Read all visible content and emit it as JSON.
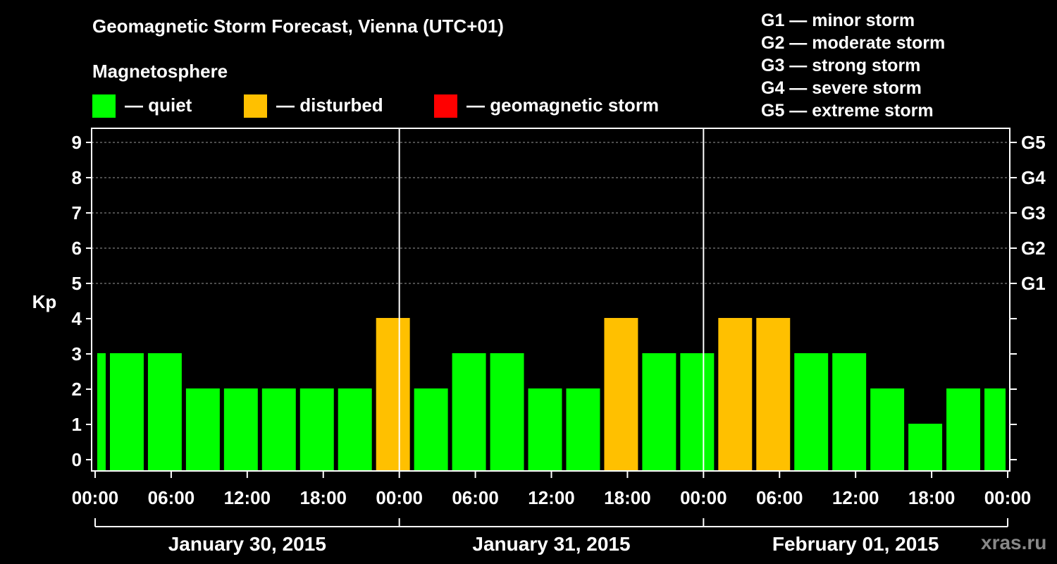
{
  "title": "Geomagnetic Storm Forecast, Vienna (UTC+01)",
  "magnetosphere": {
    "heading": "Magnetosphere",
    "items": [
      {
        "label": "— quiet",
        "color": "#00ff00"
      },
      {
        "label": "— disturbed",
        "color": "#ffc000"
      },
      {
        "label": "— geomagnetic storm",
        "color": "#ff0000"
      }
    ]
  },
  "g_scale": [
    "G1 — minor storm",
    "G2 — moderate storm",
    "G3 — strong storm",
    "G4 — severe storm",
    "G5 — extreme storm"
  ],
  "watermark": "xras.ru",
  "chart_data": {
    "type": "bar",
    "ylabel": "Kp",
    "ylim": [
      0,
      9
    ],
    "yticks": [
      "0",
      "1",
      "2",
      "3",
      "4",
      "5",
      "6",
      "7",
      "8",
      "9"
    ],
    "right_ticks": [
      {
        "kp": 5,
        "label": "G1"
      },
      {
        "kp": 6,
        "label": "G2"
      },
      {
        "kp": 7,
        "label": "G3"
      },
      {
        "kp": 8,
        "label": "G4"
      },
      {
        "kp": 9,
        "label": "G5"
      }
    ],
    "xticks": [
      "00:00",
      "06:00",
      "12:00",
      "18:00",
      "00:00",
      "06:00",
      "12:00",
      "18:00",
      "00:00",
      "06:00",
      "12:00",
      "18:00",
      "00:00"
    ],
    "days": [
      "January 30, 2015",
      "January 31, 2015",
      "February 01, 2015"
    ],
    "bars": [
      {
        "start": "Jan 30 00:00",
        "kp": 3,
        "level": "quiet"
      },
      {
        "start": "Jan 30 01:00",
        "kp": 3,
        "level": "quiet"
      },
      {
        "start": "Jan 30 04:00",
        "kp": 3,
        "level": "quiet"
      },
      {
        "start": "Jan 30 07:00",
        "kp": 2,
        "level": "quiet"
      },
      {
        "start": "Jan 30 10:00",
        "kp": 2,
        "level": "quiet"
      },
      {
        "start": "Jan 30 13:00",
        "kp": 2,
        "level": "quiet"
      },
      {
        "start": "Jan 30 16:00",
        "kp": 2,
        "level": "quiet"
      },
      {
        "start": "Jan 30 19:00",
        "kp": 2,
        "level": "quiet"
      },
      {
        "start": "Jan 30 22:00",
        "kp": 4,
        "level": "disturbed"
      },
      {
        "start": "Jan 31 01:00",
        "kp": 2,
        "level": "quiet"
      },
      {
        "start": "Jan 31 04:00",
        "kp": 3,
        "level": "quiet"
      },
      {
        "start": "Jan 31 07:00",
        "kp": 3,
        "level": "quiet"
      },
      {
        "start": "Jan 31 10:00",
        "kp": 2,
        "level": "quiet"
      },
      {
        "start": "Jan 31 13:00",
        "kp": 2,
        "level": "quiet"
      },
      {
        "start": "Jan 31 16:00",
        "kp": 4,
        "level": "disturbed"
      },
      {
        "start": "Jan 31 19:00",
        "kp": 3,
        "level": "quiet"
      },
      {
        "start": "Jan 31 22:00",
        "kp": 3,
        "level": "quiet"
      },
      {
        "start": "Feb 01 01:00",
        "kp": 4,
        "level": "disturbed"
      },
      {
        "start": "Feb 01 04:00",
        "kp": 4,
        "level": "disturbed"
      },
      {
        "start": "Feb 01 07:00",
        "kp": 3,
        "level": "quiet"
      },
      {
        "start": "Feb 01 10:00",
        "kp": 3,
        "level": "quiet"
      },
      {
        "start": "Feb 01 13:00",
        "kp": 2,
        "level": "quiet"
      },
      {
        "start": "Feb 01 16:00",
        "kp": 1,
        "level": "quiet"
      },
      {
        "start": "Feb 01 19:00",
        "kp": 2,
        "level": "quiet"
      },
      {
        "start": "Feb 01 22:00",
        "kp": 2,
        "level": "quiet"
      }
    ]
  }
}
